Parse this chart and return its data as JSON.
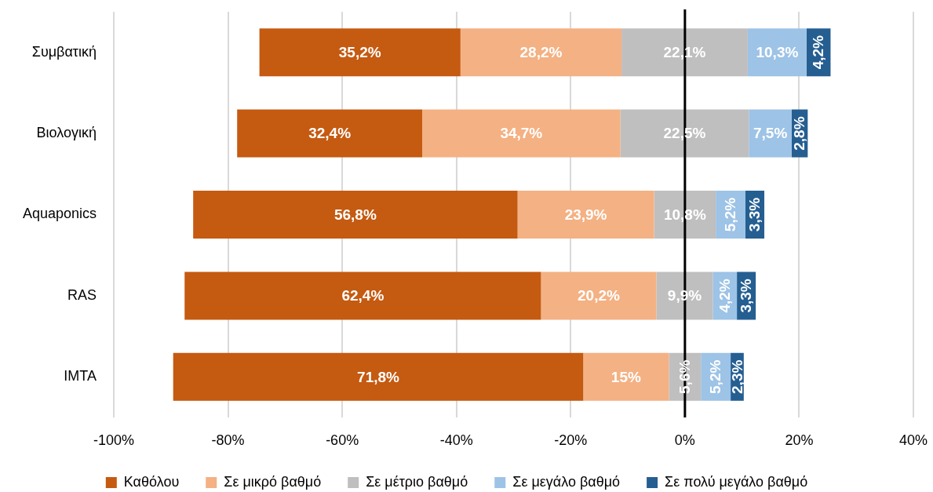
{
  "chart_data": {
    "type": "bar",
    "orientation": "horizontal",
    "categories": [
      "Συμβατική",
      "Βιολογική",
      "Aquaponics",
      "RAS",
      "IMTA"
    ],
    "series": [
      {
        "name": "Καθόλου",
        "color": "#c55a11",
        "values": [
          35.2,
          32.4,
          56.8,
          62.4,
          71.8
        ],
        "base": [
          -74.5,
          -78.4,
          -86.1,
          -87.6,
          -89.6
        ],
        "value_labels": [
          "35,2%",
          "32,4%",
          "56,8%",
          "62,4%",
          "71,8%"
        ]
      },
      {
        "name": "Σε μικρό βαθμό",
        "color": "#f4b183",
        "values": [
          28.2,
          34.7,
          23.9,
          20.2,
          15
        ],
        "base": [
          -39.3,
          -46.0,
          -29.3,
          -25.2,
          -17.8
        ],
        "value_labels": [
          "28,2%",
          "34,7%",
          "23,9%",
          "20,2%",
          "15%"
        ]
      },
      {
        "name": "Σε μέτριο βαθμό",
        "color": "#bfbfbf",
        "values": [
          22.1,
          22.5,
          10.8,
          9.9,
          5.6
        ],
        "base": [
          -11.1,
          -11.3,
          -5.4,
          -5.0,
          -2.8
        ],
        "value_labels": [
          "22,1%",
          "22,5%",
          "10,8%",
          "9,9%",
          "5,6%"
        ]
      },
      {
        "name": "Σε μεγάλο βαθμό",
        "color": "#9dc3e6",
        "values": [
          10.3,
          7.5,
          5.2,
          4.2,
          5.2
        ],
        "base": [
          11.0,
          11.2,
          5.4,
          4.9,
          2.8
        ],
        "value_labels": [
          "10,3%",
          "7,5%",
          "5,2%",
          "4,2%",
          "5,2%"
        ]
      },
      {
        "name": "Σε πολύ μεγάλο βαθμό",
        "color": "#255e91",
        "values": [
          4.2,
          2.8,
          3.3,
          3.3,
          2.3
        ],
        "base": [
          21.3,
          18.7,
          10.6,
          9.1,
          8.0
        ],
        "value_labels": [
          "4,2%",
          "2,8%",
          "3,3%",
          "3,3%",
          "2,3%"
        ]
      }
    ],
    "xlim": [
      -100,
      40
    ],
    "xticks": [
      {
        "value": -100,
        "label": "-100%"
      },
      {
        "value": -80,
        "label": "-80%"
      },
      {
        "value": -60,
        "label": "-60%"
      },
      {
        "value": -40,
        "label": "-40%"
      },
      {
        "value": -20,
        "label": "-20%"
      },
      {
        "value": 0,
        "label": "0%"
      },
      {
        "value": 20,
        "label": "20%"
      },
      {
        "value": 40,
        "label": "40%"
      }
    ],
    "ref_lines": [
      {
        "axis": "x",
        "value": 0,
        "color": "#000000"
      }
    ],
    "grid": "x",
    "legend": "bottom"
  }
}
